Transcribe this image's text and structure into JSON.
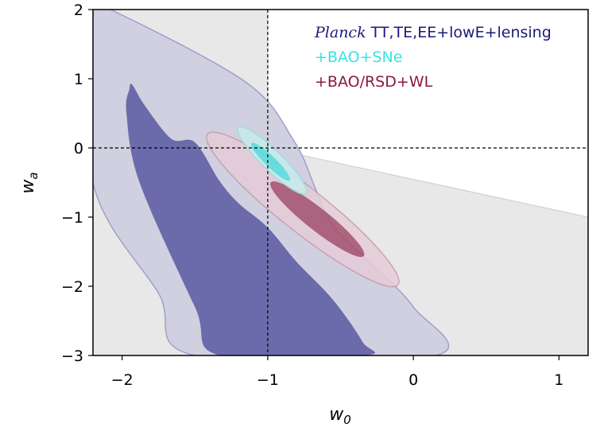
{
  "chart_data": {
    "type": "contour",
    "xlim": [
      -2.2,
      1.2
    ],
    "ylim": [
      -3,
      2
    ],
    "xticks": [
      {
        "value": -2,
        "label": "−2"
      },
      {
        "value": -1,
        "label": "−1"
      },
      {
        "value": 0,
        "label": "0"
      },
      {
        "value": 1,
        "label": "1"
      }
    ],
    "yticks": [
      {
        "value": 2,
        "label": "2"
      },
      {
        "value": 1,
        "label": "1"
      },
      {
        "value": 0,
        "label": "0"
      },
      {
        "value": -1,
        "label": "−1"
      },
      {
        "value": -2,
        "label": "−2"
      },
      {
        "value": -3,
        "label": "−3"
      }
    ],
    "xlabel_base": "w",
    "xlabel_sub": "0",
    "ylabel_base": "w",
    "ylabel_sub": "a",
    "reference_lines": {
      "w0": -1,
      "wa": 0
    },
    "legend": [
      {
        "italic": "Planck",
        "text": " TT,TE,EE+lowE+lensing",
        "color": "#1a1a7a"
      },
      {
        "italic": "",
        "text": "+BAO+SNe",
        "color": "#33e6e6"
      },
      {
        "italic": "",
        "text": "+BAO/RSD+WL",
        "color": "#8b1a3a"
      }
    ],
    "excluded_region": {
      "color": "#e8e8e8",
      "boundary": [
        [
          -2.2,
          2
        ],
        [
          -2.2,
          -3
        ],
        [
          1.2,
          -3
        ],
        [
          1.2,
          -1
        ],
        [
          -1,
          0
        ],
        [
          -1,
          2
        ]
      ]
    },
    "series": [
      {
        "name": "Planck TT,TE,EE+lowE+lensing",
        "color_68": "#6b6bab",
        "color_95": "#d0d0e0",
        "edge_color": "#a0a0c8",
        "contour_95": [
          [
            -2.08,
            2
          ],
          [
            -1.15,
            0.95
          ],
          [
            -0.82,
            0.1
          ],
          [
            -0.68,
            -0.55
          ],
          [
            -0.6,
            -0.95
          ],
          [
            -0.5,
            -1.25
          ],
          [
            -0.3,
            -1.65
          ],
          [
            0.0,
            -2.3
          ],
          [
            0.15,
            -3
          ],
          [
            -1.5,
            -3
          ],
          [
            -1.75,
            -2.1
          ],
          [
            -2.2,
            -0.5
          ],
          [
            -2.2,
            2
          ]
        ],
        "contour_68": [
          [
            -1.93,
            0.91
          ],
          [
            -1.84,
            0.6
          ],
          [
            -1.66,
            0.13
          ],
          [
            -1.5,
            0.08
          ],
          [
            -1.33,
            -0.48
          ],
          [
            -1.2,
            -0.8
          ],
          [
            -1.0,
            -1.15
          ],
          [
            -0.8,
            -1.65
          ],
          [
            -0.55,
            -2.2
          ],
          [
            -0.35,
            -2.8
          ],
          [
            -0.34,
            -3
          ],
          [
            -1.33,
            -3
          ],
          [
            -1.5,
            -2.3
          ],
          [
            -1.88,
            -0.5
          ],
          [
            -1.97,
            0.5
          ],
          [
            -1.95,
            0.85
          ]
        ]
      },
      {
        "name": "+BAO+SNe",
        "color_68": "#55e0e0",
        "color_95": "#c8ecec",
        "edge_color": "#99dede",
        "ellipse_95": {
          "cx": -0.97,
          "cy": -0.18,
          "rx": 0.53,
          "ry": 0.075,
          "angle_deg": -64
        },
        "ellipse_68": {
          "cx": -0.98,
          "cy": -0.2,
          "rx": 0.3,
          "ry": 0.04,
          "angle_deg": -64
        }
      },
      {
        "name": "+BAO/RSD+WL",
        "color_68": "#a5506d",
        "color_95": "#e6ccd8",
        "edge_color": "#c898a8",
        "ellipse_95": {
          "cx": -0.76,
          "cy": -0.89,
          "rx": 1.27,
          "ry": 0.17,
          "angle_deg": -59
        },
        "ellipse_68": {
          "cx": -0.66,
          "cy": -1.03,
          "rx": 0.62,
          "ry": 0.085,
          "angle_deg": -59
        }
      }
    ]
  }
}
